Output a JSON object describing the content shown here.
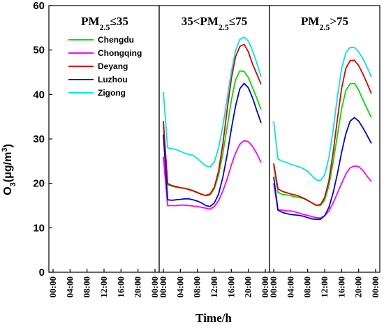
{
  "chart_data": {
    "type": "line",
    "y_axis": {
      "label_main": "O",
      "label_sub": "3",
      "label_unit_open": "(μg/m",
      "label_unit_sup": "3",
      "label_unit_close": ")",
      "ylim": [
        0,
        60
      ],
      "ticks": [
        "0",
        "10",
        "20",
        "30",
        "40",
        "50",
        "60"
      ]
    },
    "x_axis": {
      "label": "Time/h",
      "ticks": [
        "00:00",
        "04:00",
        "08:00",
        "12:00",
        "16:00",
        "20:00",
        "00:00"
      ]
    },
    "panels": [
      {
        "title": {
          "pre": "PM",
          "sub": "2.5",
          "post": "≤35"
        },
        "series": []
      },
      {
        "title": {
          "pre": "35<PM",
          "sub": "2.5",
          "post": "≤75"
        },
        "hours": [
          0,
          1,
          2,
          3,
          4,
          5,
          6,
          7,
          8,
          9,
          10,
          11,
          12,
          13,
          14,
          15,
          16,
          17,
          18,
          19,
          20,
          21,
          22,
          23
        ],
        "series": [
          {
            "name": "Chengdu",
            "values": [
              33.0,
              19.7,
              19.4,
              19.1,
              19.0,
              18.9,
              18.7,
              18.4,
              18.0,
              17.6,
              17.2,
              17.4,
              18.8,
              21.9,
              26.8,
              32.6,
              38.6,
              43.3,
              45.3,
              45.2,
              43.8,
              41.5,
              39.2,
              36.6
            ]
          },
          {
            "name": "Chongqing",
            "values": [
              26.0,
              15.0,
              15.0,
              15.0,
              15.1,
              15.1,
              15.0,
              14.9,
              14.8,
              14.6,
              14.4,
              14.2,
              14.8,
              16.1,
              18.3,
              21.0,
              24.1,
              26.8,
              28.8,
              29.6,
              29.4,
              28.3,
              26.7,
              24.7
            ]
          },
          {
            "name": "Deyang",
            "values": [
              34.0,
              20.0,
              19.5,
              19.3,
              19.0,
              18.9,
              18.6,
              18.3,
              17.9,
              17.5,
              17.3,
              17.6,
              19.1,
              22.8,
              28.9,
              36.5,
              43.5,
              48.5,
              50.8,
              51.3,
              49.6,
              46.8,
              44.6,
              42.3
            ]
          },
          {
            "name": "Luzhou",
            "values": [
              31.0,
              16.3,
              16.2,
              16.3,
              16.4,
              16.5,
              16.5,
              16.3,
              16.0,
              15.6,
              15.0,
              14.8,
              15.6,
              17.6,
              21.4,
              26.4,
              32.2,
              37.4,
              41.3,
              42.5,
              41.5,
              39.2,
              36.4,
              33.6
            ]
          },
          {
            "name": "Zigong",
            "values": [
              40.5,
              28.0,
              27.8,
              27.6,
              27.2,
              26.8,
              26.5,
              26.3,
              25.6,
              24.7,
              23.9,
              23.7,
              24.8,
              28.0,
              32.9,
              39.0,
              45.0,
              49.9,
              52.4,
              52.9,
              52.0,
              49.8,
              47.1,
              44.0
            ]
          }
        ]
      },
      {
        "title": {
          "pre": "PM",
          "sub": "2.5",
          "post": ">75"
        },
        "hours": [
          0,
          1,
          2,
          3,
          4,
          5,
          6,
          7,
          8,
          9,
          10,
          11,
          12,
          13,
          14,
          15,
          16,
          17,
          18,
          19,
          20,
          21,
          22,
          23
        ],
        "series": [
          {
            "name": "Chengdu",
            "values": [
              24.0,
              18.0,
              17.5,
              17.4,
              17.2,
              17.0,
              16.8,
              16.6,
              16.1,
              15.6,
              15.0,
              15.0,
              16.2,
              19.5,
              24.8,
              30.9,
              36.8,
              40.9,
              42.4,
              42.5,
              41.0,
              38.8,
              36.8,
              34.8
            ]
          },
          {
            "name": "Chongqing",
            "values": [
              20.0,
              14.0,
              14.0,
              13.8,
              13.8,
              13.6,
              13.3,
              13.0,
              12.8,
              12.5,
              12.3,
              12.2,
              12.7,
              13.8,
              15.6,
              17.8,
              20.0,
              22.1,
              23.5,
              23.9,
              23.8,
              22.9,
              21.6,
              20.4
            ]
          },
          {
            "name": "Deyang",
            "values": [
              24.5,
              18.8,
              18.2,
              17.9,
              17.6,
              17.4,
              17.1,
              16.7,
              16.2,
              15.6,
              15.1,
              15.2,
              16.8,
              20.6,
              27.0,
              34.5,
              41.4,
              45.9,
              47.6,
              47.7,
              46.5,
              44.6,
              42.5,
              40.2
            ]
          },
          {
            "name": "Luzhou",
            "values": [
              21.5,
              14.0,
              13.5,
              13.2,
              13.0,
              12.9,
              12.8,
              12.6,
              12.3,
              12.0,
              11.9,
              11.9,
              12.7,
              14.6,
              17.9,
              22.2,
              27.0,
              31.2,
              34.0,
              34.8,
              34.0,
              32.5,
              30.8,
              29.0
            ]
          },
          {
            "name": "Zigong",
            "values": [
              34.0,
              25.5,
              25.0,
              24.7,
              24.3,
              24.0,
              23.7,
              23.3,
              22.7,
              21.7,
              20.8,
              20.6,
              21.9,
              25.8,
              32.0,
              39.5,
              45.8,
              49.4,
              50.6,
              50.6,
              49.6,
              48.1,
              46.1,
              44.0
            ]
          }
        ]
      }
    ],
    "legend": {
      "placement": "upper-left of first panel",
      "entries": [
        {
          "name": "Chengdu",
          "color": "#00dd00"
        },
        {
          "name": "Chongqing",
          "color": "#ff00ff"
        },
        {
          "name": "Deyang",
          "color": "#dd0000"
        },
        {
          "name": "Luzhou",
          "color": "#0000dd"
        },
        {
          "name": "Zigong",
          "color": "#00e5e5"
        }
      ]
    },
    "grid": false
  }
}
